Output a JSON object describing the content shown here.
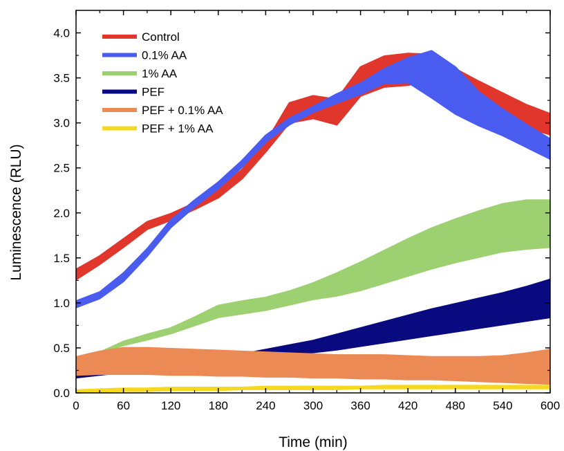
{
  "chart_data": {
    "type": "area",
    "title": "",
    "xlabel": "Time (min)",
    "ylabel": "Luminescence (RLU)",
    "xlim": [
      0,
      600
    ],
    "ylim": [
      0,
      4.25
    ],
    "x_ticks": [
      0,
      60,
      120,
      180,
      240,
      300,
      360,
      420,
      480,
      540,
      600
    ],
    "x_tick_labels": [
      "0",
      "60",
      "120",
      "180",
      "240",
      "300",
      "360",
      "420",
      "480",
      "540",
      "600"
    ],
    "y_ticks": [
      0.0,
      0.5,
      1.0,
      1.5,
      2.0,
      2.5,
      3.0,
      3.5,
      4.0
    ],
    "y_tick_labels": [
      "0.0",
      "0.5",
      "1.0",
      "1.5",
      "2.0",
      "2.5",
      "3.0",
      "3.5",
      "4.0"
    ],
    "grid": false,
    "legend_position": "top-left",
    "x": [
      0,
      30,
      60,
      90,
      120,
      150,
      180,
      210,
      240,
      270,
      300,
      330,
      360,
      390,
      420,
      450,
      480,
      510,
      540,
      570,
      600
    ],
    "series": [
      {
        "name": "Control",
        "color": "#e0362c",
        "lower": [
          1.26,
          1.43,
          1.62,
          1.82,
          1.92,
          2.04,
          2.17,
          2.38,
          2.68,
          3.0,
          3.05,
          2.98,
          3.3,
          3.4,
          3.42,
          3.47,
          3.33,
          3.2,
          3.06,
          2.95,
          2.87
        ],
        "upper": [
          1.37,
          1.52,
          1.71,
          1.9,
          1.99,
          2.11,
          2.26,
          2.48,
          2.78,
          3.22,
          3.3,
          3.26,
          3.62,
          3.74,
          3.77,
          3.76,
          3.6,
          3.46,
          3.33,
          3.2,
          3.1
        ]
      },
      {
        "name": "0.1% AA",
        "color": "#4a5cf0",
        "lower": [
          0.95,
          1.05,
          1.24,
          1.52,
          1.84,
          2.07,
          2.27,
          2.51,
          2.79,
          2.98,
          3.12,
          3.22,
          3.32,
          3.44,
          3.45,
          3.28,
          3.1,
          2.97,
          2.86,
          2.73,
          2.6
        ],
        "upper": [
          1.02,
          1.12,
          1.33,
          1.6,
          1.92,
          2.14,
          2.34,
          2.58,
          2.86,
          3.05,
          3.18,
          3.32,
          3.44,
          3.6,
          3.72,
          3.8,
          3.62,
          3.34,
          3.15,
          2.98,
          2.82
        ]
      },
      {
        "name": "1% AA",
        "color": "#9dd070",
        "lower": [
          null,
          0.45,
          0.53,
          0.59,
          0.66,
          0.75,
          0.84,
          0.88,
          0.92,
          0.98,
          1.04,
          1.08,
          1.14,
          1.22,
          1.3,
          1.38,
          1.45,
          1.51,
          1.57,
          1.6,
          1.62
        ],
        "upper": [
          null,
          0.45,
          0.57,
          0.65,
          0.72,
          0.84,
          0.97,
          1.02,
          1.06,
          1.13,
          1.22,
          1.33,
          1.45,
          1.58,
          1.71,
          1.83,
          1.93,
          2.02,
          2.1,
          2.14,
          2.14
        ]
      },
      {
        "name": "PEF",
        "color": "#0a0a80",
        "lower": [
          0.17,
          0.2,
          0.23,
          0.26,
          0.28,
          0.3,
          0.33,
          0.36,
          0.39,
          0.42,
          0.45,
          0.48,
          0.52,
          0.56,
          0.6,
          0.64,
          0.68,
          0.72,
          0.76,
          0.8,
          0.84
        ],
        "upper": [
          0.2,
          0.23,
          0.27,
          0.3,
          0.32,
          0.35,
          0.39,
          0.43,
          0.48,
          0.53,
          0.58,
          0.65,
          0.72,
          0.79,
          0.86,
          0.93,
          0.99,
          1.05,
          1.11,
          1.18,
          1.26
        ]
      },
      {
        "name": "PEF + 0.1% AA",
        "color": "#ec8a55",
        "lower": [
          0.2,
          0.21,
          0.21,
          0.21,
          0.2,
          0.2,
          0.19,
          0.19,
          0.18,
          0.18,
          0.17,
          0.17,
          0.16,
          0.16,
          0.15,
          0.15,
          0.14,
          0.13,
          0.12,
          0.11,
          0.1
        ],
        "upper": [
          0.4,
          0.46,
          0.5,
          0.5,
          0.49,
          0.48,
          0.47,
          0.46,
          0.45,
          0.44,
          0.43,
          0.42,
          0.42,
          0.42,
          0.41,
          0.4,
          0.4,
          0.4,
          0.41,
          0.44,
          0.48
        ]
      },
      {
        "name": "PEF + 1% AA",
        "color": "#f5d820",
        "lower": [
          0.0,
          0.01,
          0.02,
          0.02,
          0.03,
          0.03,
          0.03,
          0.04,
          0.04,
          0.04,
          0.04,
          0.04,
          0.05,
          0.05,
          0.05,
          0.05,
          0.05,
          0.05,
          0.05,
          0.05,
          0.05
        ],
        "upper": [
          0.03,
          0.04,
          0.05,
          0.05,
          0.06,
          0.06,
          0.06,
          0.06,
          0.07,
          0.07,
          0.07,
          0.07,
          0.07,
          0.08,
          0.08,
          0.08,
          0.08,
          0.08,
          0.08,
          0.08,
          0.08
        ]
      }
    ]
  }
}
